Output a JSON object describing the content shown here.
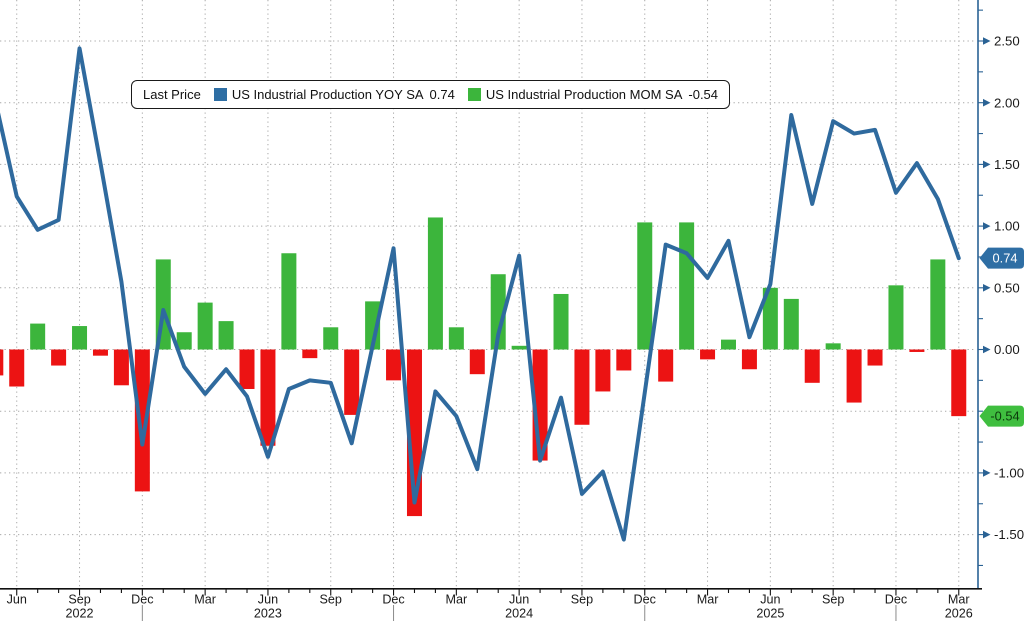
{
  "legend": {
    "title": "Last Price",
    "items": [
      {
        "name": "US Industrial Production YOY SA",
        "value": "0.74",
        "color": "#2e6ea4"
      },
      {
        "name": "US Industrial Production MOM SA",
        "value": "-0.54",
        "color": "#3cb53c"
      }
    ]
  },
  "chart_data": {
    "type": "bar+line",
    "title": "",
    "x": [
      "May 2022",
      "Jun 2022",
      "Jul 2022",
      "Aug 2022",
      "Sep 2022",
      "Oct 2022",
      "Nov 2022",
      "Dec 2022",
      "Jan 2023",
      "Feb 2023",
      "Mar 2023",
      "Apr 2023",
      "May 2023",
      "Jun 2023",
      "Jul 2023",
      "Aug 2023",
      "Sep 2023",
      "Oct 2023",
      "Nov 2023",
      "Dec 2023",
      "Jan 2024",
      "Feb 2024",
      "Mar 2024",
      "Apr 2024",
      "May 2024",
      "Jun 2024",
      "Jul 2024",
      "Aug 2024",
      "Sep 2024",
      "Oct 2024",
      "Nov 2024",
      "Dec 2024",
      "Jan 2025",
      "Feb 2025",
      "Mar 2025",
      "Apr 2025",
      "May 2025",
      "Jun 2025",
      "Jul 2025",
      "Aug 2025",
      "Sep 2025",
      "Oct 2025",
      "Nov 2025",
      "Dec 2025",
      "Jan 2026",
      "Feb 2026",
      "Mar 2026"
    ],
    "series": [
      {
        "name": "US Industrial Production YOY SA",
        "type": "line",
        "last": 0.74,
        "values": [
          2.0,
          1.24,
          0.97,
          1.05,
          2.44,
          1.51,
          0.55,
          -0.77,
          0.32,
          -0.14,
          -0.36,
          -0.16,
          -0.38,
          -0.87,
          -0.32,
          -0.25,
          -0.27,
          -0.76,
          0.03,
          0.82,
          -1.24,
          -0.34,
          -0.54,
          -0.97,
          0.12,
          0.76,
          -0.9,
          -0.39,
          -1.17,
          -0.99,
          -1.54,
          -0.35,
          0.85,
          0.78,
          0.58,
          0.88,
          0.1,
          0.53,
          1.9,
          1.18,
          1.85,
          1.75,
          1.78,
          1.27,
          1.51,
          1.22,
          0.74
        ]
      },
      {
        "name": "US Industrial Production MOM SA",
        "type": "bar",
        "last": -0.54,
        "values": [
          -0.21,
          -0.3,
          0.21,
          -0.13,
          0.19,
          -0.05,
          -0.29,
          -1.15,
          0.73,
          0.14,
          0.38,
          0.23,
          -0.32,
          -0.78,
          0.78,
          -0.07,
          0.18,
          -0.53,
          0.39,
          -0.25,
          -1.35,
          1.07,
          0.18,
          -0.2,
          0.61,
          0.03,
          -0.9,
          0.45,
          -0.61,
          -0.34,
          -0.17,
          1.03,
          -0.26,
          1.03,
          -0.08,
          0.08,
          -0.16,
          0.5,
          0.41,
          -0.27,
          0.05,
          -0.43,
          -0.13,
          0.52,
          -0.02,
          0.73,
          -0.54
        ]
      }
    ],
    "ylim": [
      -1.93,
      2.83
    ],
    "grid": true,
    "legend_position": "top-left",
    "y_axis": {
      "side": "right",
      "gridline_values": [
        2.5,
        2.0,
        1.5,
        1.0,
        0.5,
        0.0,
        -0.5,
        -1.0,
        -1.5
      ],
      "labels": [
        {
          "value": 2.5,
          "label": "2.50"
        },
        {
          "value": 2.0,
          "label": "2.00"
        },
        {
          "value": 1.5,
          "label": "1.50"
        },
        {
          "value": 1.0,
          "label": "1.00"
        },
        {
          "value": 0.5,
          "label": "0.50"
        },
        {
          "value": 0.0,
          "label": "0.00"
        },
        {
          "value": -1.0,
          "label": "-1.00"
        },
        {
          "value": -1.5,
          "label": "-1.50"
        }
      ],
      "minor_step": 0.25
    },
    "x_axis": {
      "quarter_ticks": [
        {
          "index": 1,
          "label": "Jun"
        },
        {
          "index": 4,
          "label": "Sep"
        },
        {
          "index": 7,
          "label": "Dec"
        },
        {
          "index": 10,
          "label": "Mar"
        },
        {
          "index": 13,
          "label": "Jun"
        },
        {
          "index": 16,
          "label": "Sep"
        },
        {
          "index": 19,
          "label": "Dec"
        },
        {
          "index": 22,
          "label": "Mar"
        },
        {
          "index": 25,
          "label": "Jun"
        },
        {
          "index": 28,
          "label": "Sep"
        },
        {
          "index": 31,
          "label": "Dec"
        },
        {
          "index": 34,
          "label": "Mar"
        },
        {
          "index": 37,
          "label": "Jun"
        },
        {
          "index": 40,
          "label": "Sep"
        },
        {
          "index": 43,
          "label": "Dec"
        },
        {
          "index": 46,
          "label": "Mar"
        }
      ],
      "year_labels": [
        {
          "index": 4,
          "label": "2022"
        },
        {
          "index": 13,
          "label": "2023"
        },
        {
          "index": 25,
          "label": "2024"
        },
        {
          "index": 37,
          "label": "2025"
        },
        {
          "index": 46,
          "label": "2026"
        }
      ],
      "year_separator_indices": [
        7,
        19,
        31,
        43
      ]
    },
    "badges": [
      {
        "label": "0.74",
        "value": 0.74,
        "fill": "#2e6ea4",
        "text_color": "#ffffff"
      },
      {
        "label": "-0.54",
        "value": -0.54,
        "fill": "#3fbe3f",
        "text_color": "#0c3a0c"
      }
    ],
    "colors": {
      "line": "#2f6a9e",
      "bar_positive": "#3cb53c",
      "bar_negative": "#ec1313",
      "right_axis": "#2a6294",
      "bottom_axis": "#111111",
      "grid": "#a9a9a9",
      "axis_text": "#1a1a1a"
    }
  }
}
